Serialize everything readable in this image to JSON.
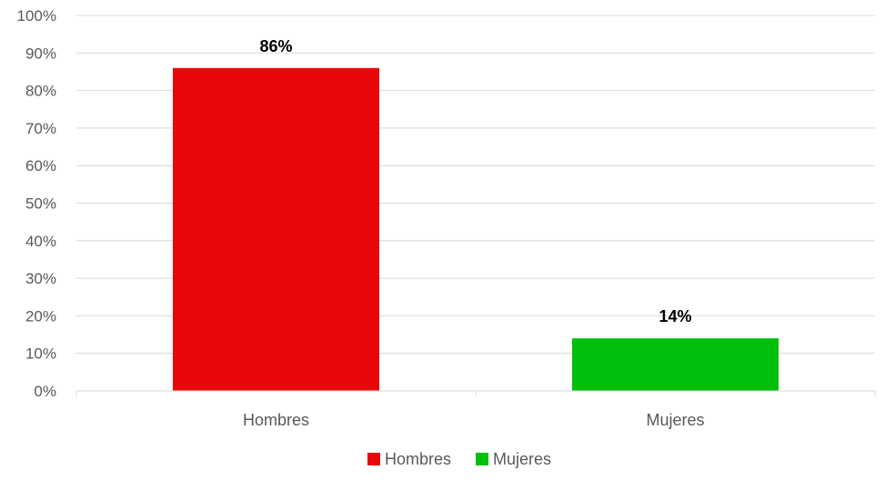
{
  "chart_data": {
    "type": "bar",
    "categories": [
      "Hombres",
      "Mujeres"
    ],
    "values": [
      86,
      14
    ],
    "data_labels": [
      "86%",
      "14%"
    ],
    "colors": [
      "#e8080a",
      "#00c00b"
    ],
    "title": "",
    "xlabel": "",
    "ylabel": "",
    "ylim": [
      0,
      100
    ],
    "y_ticks": [
      0,
      10,
      20,
      30,
      40,
      50,
      60,
      70,
      80,
      90,
      100
    ],
    "y_tick_labels": [
      "0%",
      "10%",
      "20%",
      "30%",
      "40%",
      "50%",
      "60%",
      "70%",
      "80%",
      "90%",
      "100%"
    ],
    "grid": true,
    "grid_color": "#d9d9d9",
    "legend": {
      "position": "bottom",
      "entries": [
        {
          "label": "Hombres",
          "color": "#e8080a"
        },
        {
          "label": "Mujeres",
          "color": "#00c00b"
        }
      ]
    }
  }
}
